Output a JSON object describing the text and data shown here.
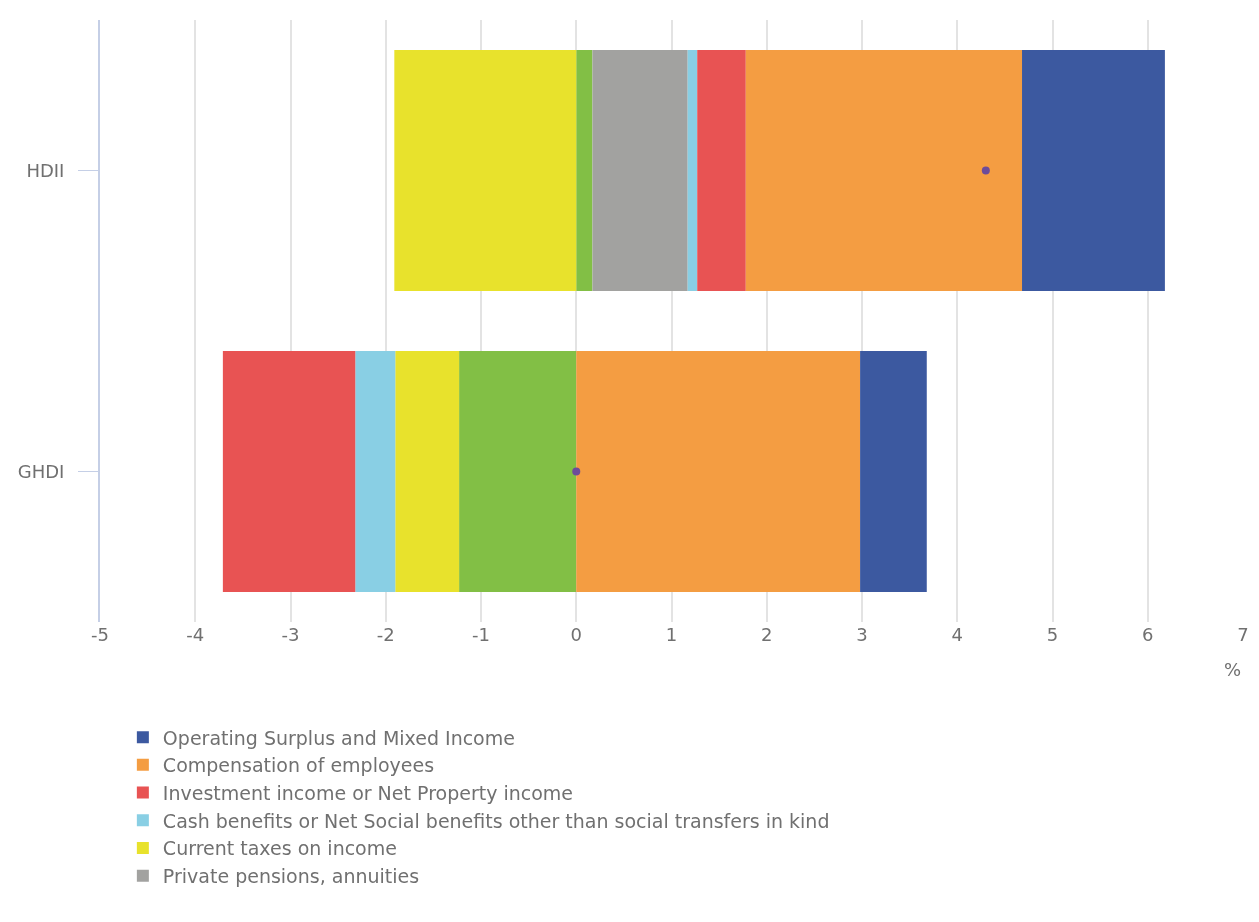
{
  "chart_data": {
    "type": "bar",
    "orientation": "horizontal",
    "stacked": true,
    "categories": [
      "HDII",
      "GHDI"
    ],
    "xlabel": "%",
    "xlim": [
      -5,
      7
    ],
    "xticks": [
      -5,
      -4,
      -3,
      -2,
      -1,
      0,
      1,
      2,
      3,
      4,
      5,
      6,
      7
    ],
    "grid": "x",
    "legend": "bottom",
    "series": [
      {
        "color": "#82bf45",
        "values": [
          0.17,
          -1.23
        ]
      },
      {
        "name": "Private pensions, annuities",
        "color": "#a2a2a0",
        "values": [
          1.0,
          null
        ]
      },
      {
        "name": "Current taxes on income",
        "color": "#e8e22c",
        "values": [
          -1.91,
          -0.67
        ]
      },
      {
        "name": "Cash benefits or Net Social benefits other than social transfers in kind",
        "color": "#89cfe4",
        "values": [
          0.1,
          -0.42
        ]
      },
      {
        "name": "Investment income or Net Property income",
        "color": "#e85353",
        "values": [
          0.51,
          -1.39
        ]
      },
      {
        "name": "Compensation of employees",
        "color": "#f49d42",
        "values": [
          2.9,
          2.98
        ]
      },
      {
        "name": "Operating Surplus and Mixed Income",
        "color": "#3c59a0",
        "values": [
          1.5,
          0.7
        ]
      },
      {
        "type": "scatter",
        "marker": "circle",
        "color": "#6d4c9a",
        "values": [
          4.3,
          0.0
        ]
      }
    ]
  }
}
